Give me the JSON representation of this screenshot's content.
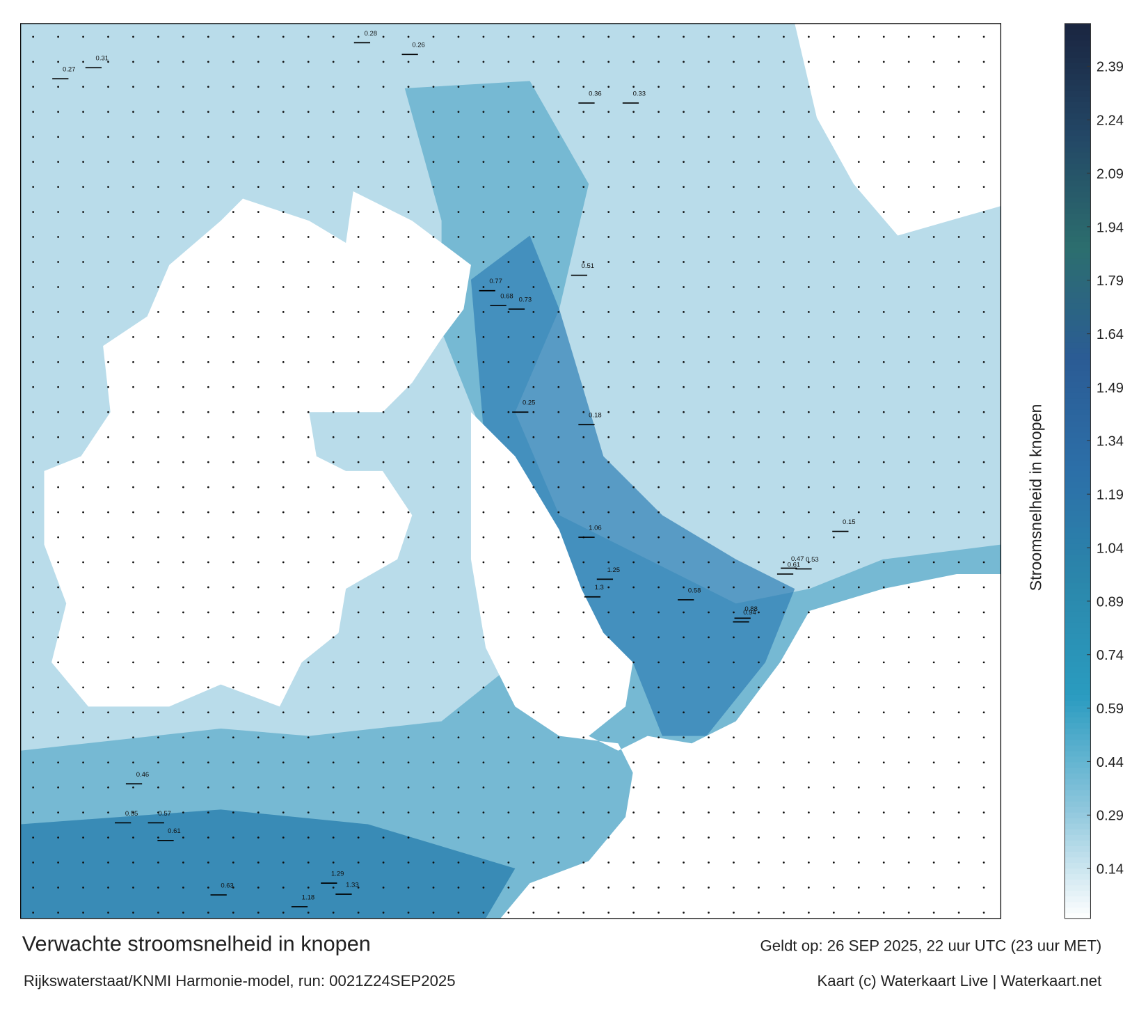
{
  "map": {
    "title": "Verwachte stroomsnelheid in knopen",
    "subtitle": "Rijkswaterstaat/KNMI Harmonie-model, run: 0021Z24SEP2025",
    "valid_time": "Geldt op: 26 SEP 2025, 22 uur UTC (23 uur MET)",
    "credit": "Kaart (c) Waterkaart Live | Waterkaart.net",
    "speed_labels": [
      0.31,
      0.27,
      0.28,
      0.26,
      0.36,
      0.33,
      0.77,
      0.68,
      0.73,
      0.51,
      0.25,
      0.18,
      1.06,
      1.25,
      1.3,
      0.88,
      0.94,
      0.61,
      0.53,
      0.58,
      0.47,
      0.55,
      0.57,
      0.61,
      1.29,
      1.33,
      1.18,
      0.63,
      0.46,
      0.15
    ]
  },
  "colorbar": {
    "label": "Stroomsnelheid in knopen",
    "clim": [
      0,
      2.51
    ],
    "ticks": [
      0.14,
      0.29,
      0.44,
      0.59,
      0.74,
      0.89,
      1.04,
      1.19,
      1.34,
      1.49,
      1.64,
      1.79,
      1.94,
      2.09,
      2.24,
      2.39
    ],
    "colors": [
      "#ffffff",
      "#8cc6dc",
      "#2a9bc0",
      "#2b87ab",
      "#2c6fa8",
      "#2b5c95",
      "#2c6e6e",
      "#234766",
      "#1a2540"
    ]
  }
}
